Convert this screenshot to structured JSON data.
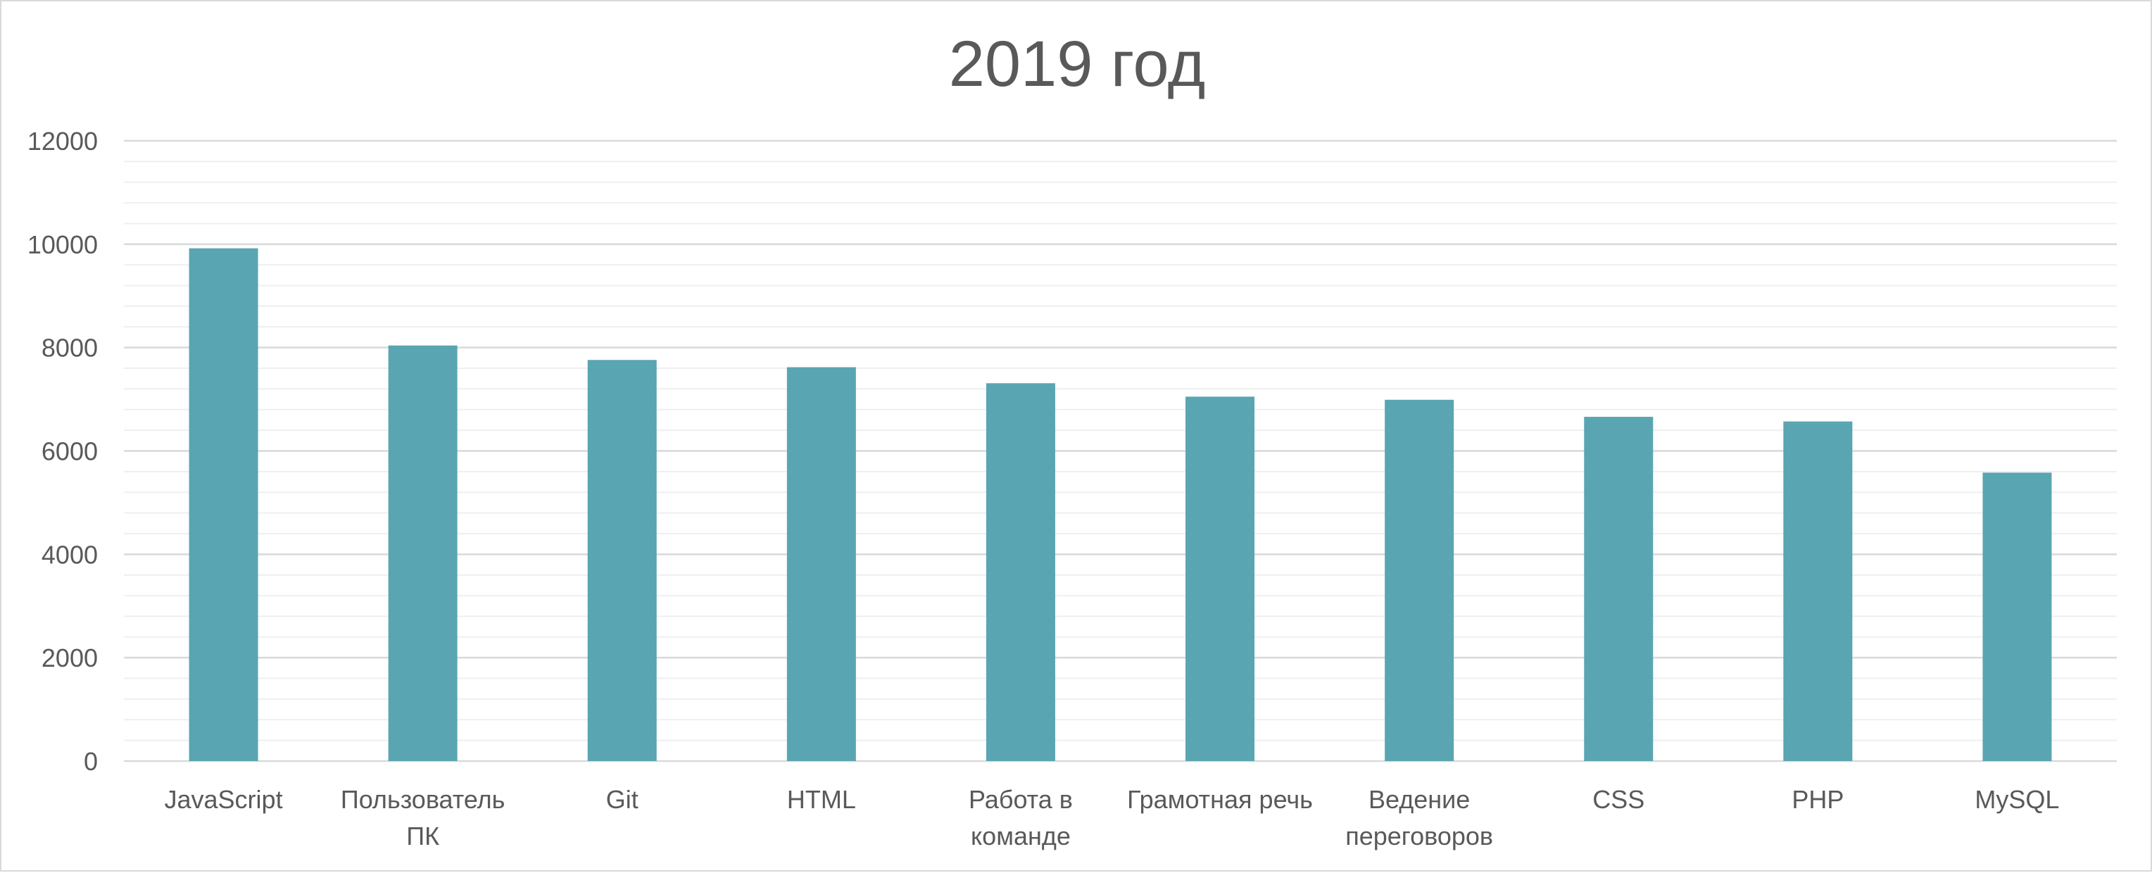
{
  "chart_data": {
    "type": "bar",
    "title": "2019 год",
    "xlabel": "",
    "ylabel": "",
    "categories": [
      [
        "JavaScript"
      ],
      [
        "Пользователь",
        "ПК"
      ],
      [
        "Git"
      ],
      [
        "HTML"
      ],
      [
        "Работа в",
        "команде"
      ],
      [
        "Грамотная речь"
      ],
      [
        "Ведение",
        "переговоров"
      ],
      [
        "CSS"
      ],
      [
        "PHP"
      ],
      [
        "MySQL"
      ]
    ],
    "values": [
      9920,
      8040,
      7760,
      7620,
      7310,
      7050,
      6990,
      6660,
      6570,
      5580
    ],
    "ylim": [
      0,
      12000
    ],
    "yticks": [
      0,
      2000,
      4000,
      6000,
      8000,
      10000,
      12000
    ],
    "minor_step": 400,
    "grid": true,
    "legend": "none",
    "colors": {
      "bar": "#5aa5b2",
      "major_grid": "#d9d9d9",
      "minor_grid": "#efefef",
      "text": "#595959"
    }
  }
}
